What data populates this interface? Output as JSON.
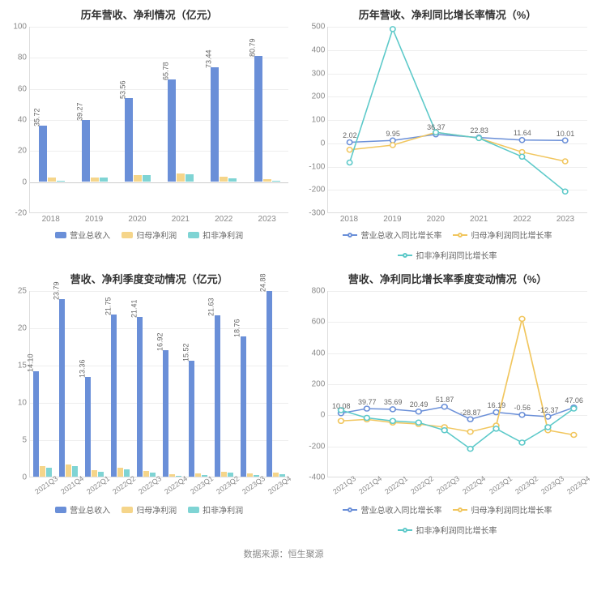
{
  "colors": {
    "bar_primary": "#6a8fd8",
    "bar_secondary": "#f5d58a",
    "bar_tertiary": "#7fd4d4",
    "line1": "#6a8fd8",
    "line2": "#f1c65e",
    "line3": "#5cc9c9",
    "grid": "#eeeeee",
    "axis": "#dddddd",
    "text": "#666666",
    "title": "#333333",
    "tick": "#888888",
    "bg": "#ffffff"
  },
  "typography": {
    "title_fontsize": 13,
    "tick_fontsize": 10,
    "label_fontsize": 9,
    "font_family": "Microsoft YaHei"
  },
  "footer": "数据来源：恒生聚源",
  "panels": {
    "tl": {
      "type": "bar",
      "title": "历年营收、净利情况（亿元）",
      "ylim": [
        -20,
        100
      ],
      "ytick_step": 20,
      "categories": [
        "2018",
        "2019",
        "2020",
        "2021",
        "2022",
        "2023"
      ],
      "series": [
        {
          "name": "营业总收入",
          "color": "#6a8fd8",
          "values": [
            35.72,
            39.27,
            53.56,
            65.78,
            73.44,
            80.79
          ],
          "show_label": true
        },
        {
          "name": "归母净利润",
          "color": "#f5d58a",
          "values": [
            2.5,
            2.7,
            4.2,
            4.8,
            2.8,
            1.2
          ],
          "show_label": false
        },
        {
          "name": "扣非净利润",
          "color": "#7fd4d4",
          "values": [
            0.5,
            2.5,
            4.0,
            4.5,
            1.8,
            0.3
          ],
          "show_label": false
        }
      ],
      "legend": [
        {
          "label": "营业总收入",
          "color": "#6a8fd8",
          "kind": "bar"
        },
        {
          "label": "归母净利润",
          "color": "#f5d58a",
          "kind": "bar"
        },
        {
          "label": "扣非净利润",
          "color": "#7fd4d4",
          "kind": "bar"
        }
      ]
    },
    "tr": {
      "type": "line",
      "title": "历年营收、净利同比增长率情况（%）",
      "ylim": [
        -300,
        500
      ],
      "ytick_step": 100,
      "categories": [
        "2018",
        "2019",
        "2020",
        "2021",
        "2022",
        "2023"
      ],
      "series": [
        {
          "name": "营业总收入同比增长率",
          "color": "#6a8fd8",
          "values": [
            2.02,
            9.95,
            36.37,
            22.83,
            11.64,
            10.01
          ],
          "show_label": true
        },
        {
          "name": "归母净利润同比增长率",
          "color": "#f1c65e",
          "values": [
            -30,
            -10,
            45,
            20,
            -40,
            -80
          ],
          "show_label": false
        },
        {
          "name": "扣非净利润同比增长率",
          "color": "#5cc9c9",
          "values": [
            -85,
            490,
            45,
            20,
            -60,
            -210
          ],
          "show_label": false
        }
      ],
      "legend": [
        {
          "label": "营业总收入同比增长率",
          "color": "#6a8fd8",
          "kind": "line"
        },
        {
          "label": "归母净利润同比增长率",
          "color": "#f1c65e",
          "kind": "line"
        },
        {
          "label": "扣非净利润同比增长率",
          "color": "#5cc9c9",
          "kind": "line"
        }
      ]
    },
    "bl": {
      "type": "bar",
      "title": "营收、净利季度变动情况（亿元）",
      "ylim": [
        0,
        25
      ],
      "ytick_step": 5,
      "categories": [
        "2021Q3",
        "2021Q4",
        "2022Q1",
        "2022Q2",
        "2022Q3",
        "2022Q4",
        "2023Q1",
        "2023Q2",
        "2023Q3",
        "2023Q4"
      ],
      "rotate_x": true,
      "series": [
        {
          "name": "营业总收入",
          "color": "#6a8fd8",
          "values": [
            14.1,
            23.79,
            13.36,
            21.75,
            21.41,
            16.92,
            15.52,
            21.63,
            18.76,
            24.88
          ],
          "show_label": true
        },
        {
          "name": "归母净利润",
          "color": "#f5d58a",
          "values": [
            1.4,
            1.6,
            0.9,
            1.2,
            0.8,
            0.3,
            0.4,
            0.7,
            0.4,
            0.5
          ],
          "show_label": false
        },
        {
          "name": "扣非净利润",
          "color": "#7fd4d4",
          "values": [
            1.2,
            1.4,
            0.7,
            1.0,
            0.5,
            0.1,
            0.2,
            0.5,
            0.2,
            0.3
          ],
          "show_label": false
        }
      ],
      "legend": [
        {
          "label": "营业总收入",
          "color": "#6a8fd8",
          "kind": "bar"
        },
        {
          "label": "归母净利润",
          "color": "#f5d58a",
          "kind": "bar"
        },
        {
          "label": "扣非净利润",
          "color": "#7fd4d4",
          "kind": "bar"
        }
      ]
    },
    "br": {
      "type": "line",
      "title": "营收、净利同比增长率季度变动情况（%）",
      "ylim": [
        -400,
        800
      ],
      "ytick_step": 200,
      "categories": [
        "2021Q3",
        "2021Q4",
        "2022Q1",
        "2022Q2",
        "2022Q3",
        "2022Q4",
        "2023Q1",
        "2023Q2",
        "2023Q3",
        "2023Q4"
      ],
      "rotate_x": true,
      "series": [
        {
          "name": "营业总收入同比增长率",
          "color": "#6a8fd8",
          "values": [
            10.08,
            39.77,
            35.69,
            20.49,
            51.87,
            -28.87,
            16.19,
            -0.56,
            -12.37,
            47.06
          ],
          "show_label": true
        },
        {
          "name": "归母净利润同比增长率",
          "color": "#f1c65e",
          "values": [
            -40,
            -30,
            -50,
            -60,
            -80,
            -110,
            -70,
            620,
            -100,
            -130
          ],
          "show_label": false
        },
        {
          "name": "扣非净利润同比增长率",
          "color": "#5cc9c9",
          "values": [
            30,
            -20,
            -40,
            -50,
            -100,
            -220,
            -90,
            -180,
            -80,
            40
          ],
          "show_label": false
        }
      ],
      "legend": [
        {
          "label": "营业总收入同比增长率",
          "color": "#6a8fd8",
          "kind": "line"
        },
        {
          "label": "归母净利润同比增长率",
          "color": "#f1c65e",
          "kind": "line"
        },
        {
          "label": "扣非净利润同比增长率",
          "color": "#5cc9c9",
          "kind": "line"
        }
      ]
    }
  }
}
